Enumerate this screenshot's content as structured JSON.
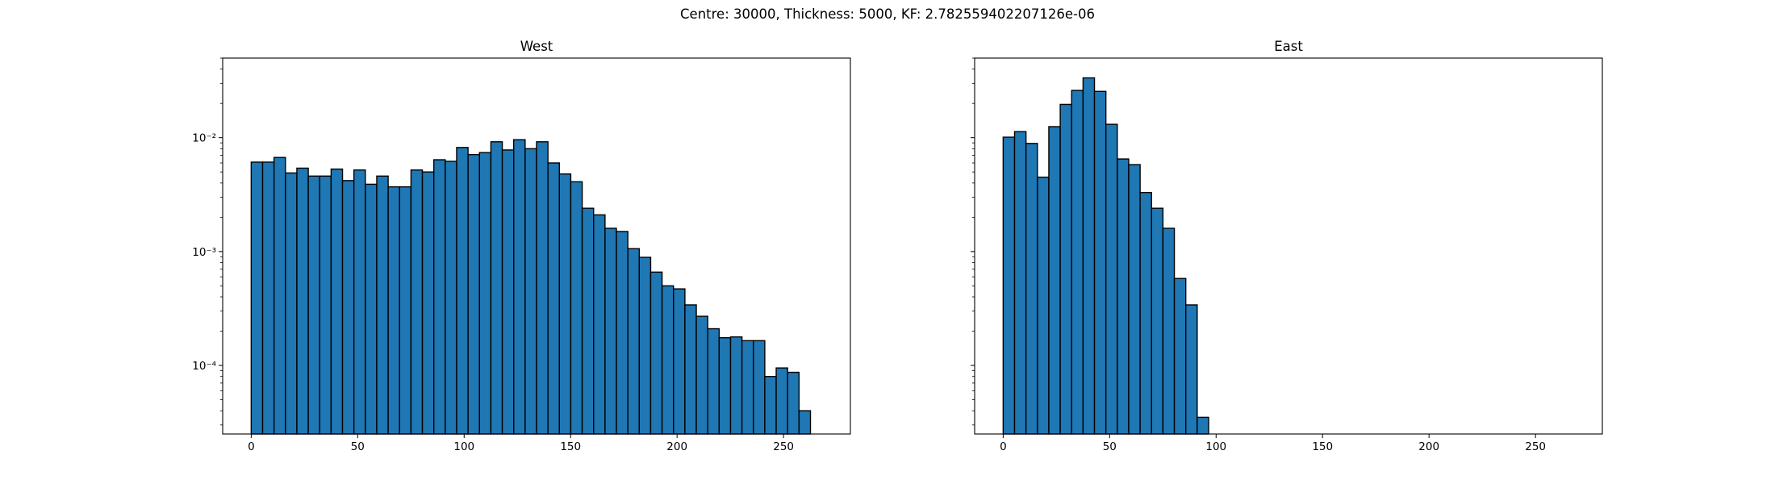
{
  "figure": {
    "suptitle": "Centre: 30000, Thickness: 5000, KF: 2.782559402207126e-06"
  },
  "style": {
    "bar_color": "#1f77b4",
    "edge_color": "#000000"
  },
  "chart_data": [
    {
      "type": "bar",
      "title": "West",
      "xlabel": "",
      "ylabel": "",
      "y_scale": "log",
      "xlim": [
        -13.4,
        281.4
      ],
      "ylim": [
        2.5e-05,
        0.05
      ],
      "x_ticks": [
        0,
        50,
        100,
        150,
        200,
        250
      ],
      "y_ticks": [
        {
          "value": 0.0001,
          "label": "10^-4"
        },
        {
          "value": 0.001,
          "label": "10^-3"
        },
        {
          "value": 0.01,
          "label": "10^-2"
        }
      ],
      "bin_width": 5.36,
      "bin_edges_start": 0,
      "values": [
        0.0061,
        0.0061,
        0.0067,
        0.0049,
        0.0054,
        0.0046,
        0.0046,
        0.0053,
        0.0042,
        0.0052,
        0.0039,
        0.0046,
        0.0037,
        0.0037,
        0.0052,
        0.005,
        0.0064,
        0.0062,
        0.0082,
        0.0071,
        0.0074,
        0.0092,
        0.0078,
        0.0096,
        0.008,
        0.0092,
        0.006,
        0.0048,
        0.0041,
        0.0024,
        0.0021,
        0.0016,
        0.0015,
        0.00106,
        0.00089,
        0.00066,
        0.0005,
        0.00047,
        0.00034,
        0.00027,
        0.00021,
        0.000175,
        0.000178,
        0.000165,
        0.000165,
        8e-05,
        9.5e-05,
        8.7e-05,
        4e-05
      ]
    },
    {
      "type": "bar",
      "title": "East",
      "xlabel": "",
      "ylabel": "",
      "y_scale": "log",
      "xlim": [
        -13.4,
        281.4
      ],
      "ylim": [
        2.5e-05,
        0.05
      ],
      "x_ticks": [
        0,
        50,
        100,
        150,
        200,
        250
      ],
      "y_ticks": [
        {
          "value": 0.0001,
          "label": ""
        },
        {
          "value": 0.001,
          "label": ""
        },
        {
          "value": 0.01,
          "label": ""
        }
      ],
      "bin_width": 5.36,
      "bin_edges_start": 0,
      "values": [
        0.0101,
        0.0113,
        0.0089,
        0.0045,
        0.0125,
        0.0196,
        0.026,
        0.0335,
        0.0255,
        0.0131,
        0.0065,
        0.0058,
        0.0033,
        0.0024,
        0.0016,
        0.00058,
        0.00034,
        3.5e-05
      ]
    }
  ]
}
